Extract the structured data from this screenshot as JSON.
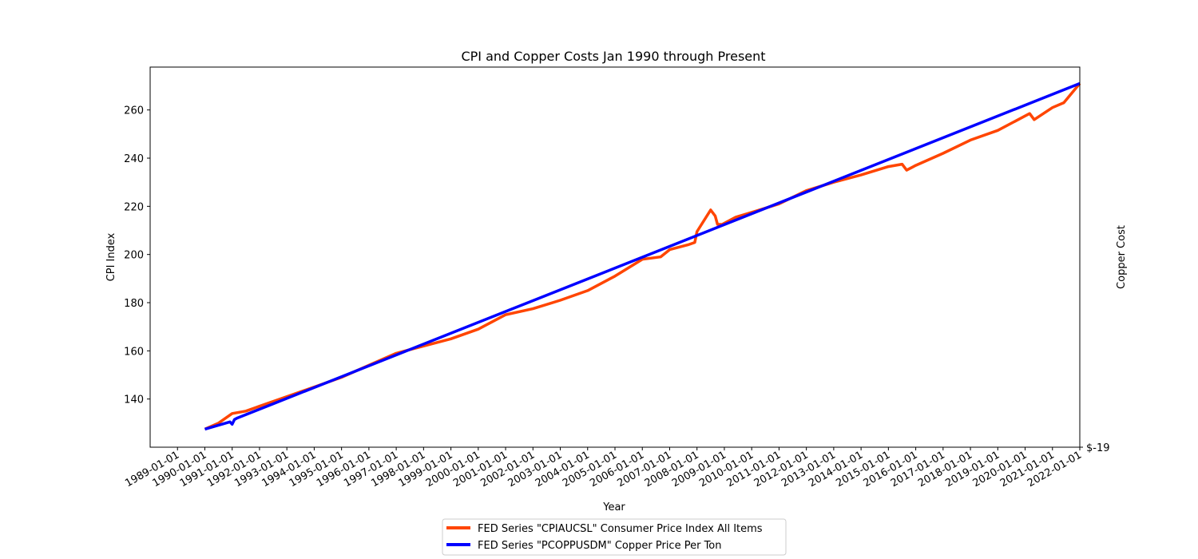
{
  "chart_data": {
    "type": "line",
    "title": "CPI and Copper Costs Jan 1990 through Present",
    "xlabel": "Year",
    "ylabel": "CPI Index",
    "ylabel_right": "Copper Cost",
    "x_ticks": [
      "1989-01-01",
      "1990-01-01",
      "1991-01-01",
      "1992-01-01",
      "1993-01-01",
      "1994-01-01",
      "1995-01-01",
      "1996-01-01",
      "1997-01-01",
      "1998-01-01",
      "1999-01-01",
      "2000-01-01",
      "2001-01-01",
      "2002-01-01",
      "2003-01-01",
      "2004-01-01",
      "2005-01-01",
      "2006-01-01",
      "2007-01-01",
      "2008-01-01",
      "2009-01-01",
      "2010-01-01",
      "2011-01-01",
      "2012-01-01",
      "2013-01-01",
      "2014-01-01",
      "2015-01-01",
      "2016-01-01",
      "2017-01-01",
      "2018-01-01",
      "2019-01-01",
      "2020-01-01",
      "2021-01-01",
      "2022-01-01"
    ],
    "y_ticks": [
      140,
      160,
      180,
      200,
      220,
      240,
      260
    ],
    "y_tick_labels": [
      "140",
      "160",
      "180",
      "200",
      "220",
      "240",
      "260"
    ],
    "y_right_tick_labels": [
      "$-19"
    ],
    "xlim": [
      "1988-01-01",
      "2022-01-01"
    ],
    "ylim": [
      120,
      277.8
    ],
    "grid": false,
    "legend_position": "below",
    "series": [
      {
        "name": "FED Series \"CPIAUCSL\" Consumer Price Index All Items",
        "color": "#ff4500",
        "x": [
          "1990-01-01",
          "1990-07-01",
          "1991-01-01",
          "1991-07-01",
          "1992-01-01",
          "1993-01-01",
          "1994-01-01",
          "1995-01-01",
          "1996-01-01",
          "1997-01-01",
          "1998-01-01",
          "1999-01-01",
          "2000-01-01",
          "2001-01-01",
          "2002-01-01",
          "2003-01-01",
          "2004-01-01",
          "2005-01-01",
          "2006-01-01",
          "2006-09-01",
          "2007-01-01",
          "2007-09-01",
          "2007-12-01",
          "2008-01-01",
          "2008-07-01",
          "2008-09-01",
          "2008-10-01",
          "2008-12-01",
          "2009-06-01",
          "2010-01-01",
          "2011-01-01",
          "2012-01-01",
          "2013-01-01",
          "2014-01-01",
          "2015-01-01",
          "2015-07-01",
          "2015-09-01",
          "2016-01-01",
          "2017-01-01",
          "2018-01-01",
          "2019-01-01",
          "2020-01-01",
          "2020-03-01",
          "2020-05-01",
          "2021-01-01",
          "2021-06-01",
          "2022-01-01"
        ],
        "values": [
          127.5,
          130.0,
          134.0,
          135.0,
          137.0,
          141.0,
          145.0,
          149.0,
          154.0,
          159.0,
          162.0,
          165.0,
          169.0,
          175.0,
          177.5,
          181.0,
          185.0,
          191.0,
          198.0,
          199.0,
          202.0,
          204.0,
          205.0,
          209.5,
          218.5,
          216.0,
          212.5,
          212.5,
          215.5,
          217.5,
          221.0,
          226.5,
          230.0,
          233.0,
          236.5,
          237.5,
          235.0,
          237.0,
          242.0,
          247.5,
          251.5,
          257.5,
          258.5,
          256.0,
          261.0,
          263.0,
          271.0
        ]
      },
      {
        "name": "FED Series \"PCOPPUSDM\" Copper Price Per Ton",
        "color": "#0000ff",
        "x": [
          "1990-01-01",
          "1990-12-01",
          "1991-01-01",
          "1991-02-01",
          "1991-03-01",
          "2022-01-01"
        ],
        "values": [
          127.5,
          130.5,
          129.5,
          131.5,
          132.0,
          271.0
        ]
      }
    ]
  }
}
